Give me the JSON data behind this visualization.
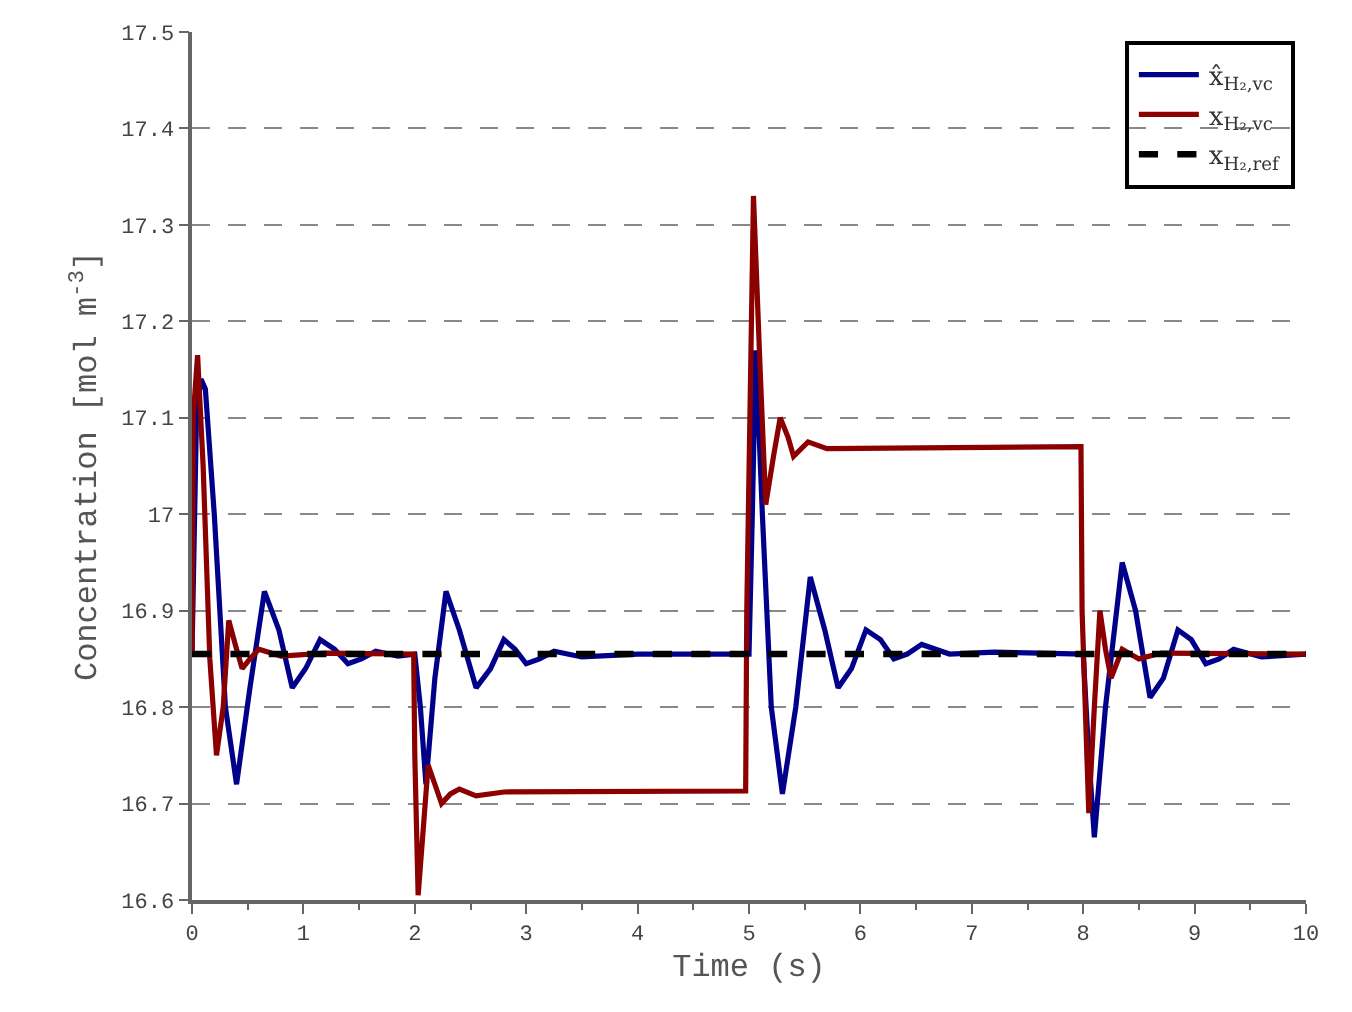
{
  "chart_data": {
    "type": "line",
    "xlabel": "Time (s)",
    "ylabel": "Concentration [mol m$^{-3}$]",
    "xlim": [
      0,
      10
    ],
    "xticks": [
      0,
      1,
      2,
      3,
      4,
      5,
      6,
      7,
      8,
      9,
      10
    ],
    "ylim": [
      16.6,
      17.5
    ],
    "yticks": [
      16.6,
      16.7,
      16.8,
      16.9,
      {
        "value": 17,
        "label": "17"
      },
      17.1,
      17.2,
      17.3,
      17.4,
      17.5
    ],
    "grid": "y",
    "legend": "top right",
    "marker": "none",
    "series": [
      {
        "name": "x̂$_{H₂,vc}$",
        "color": "#00008b",
        "line_style": "solid",
        "x": [
          0,
          0.04,
          0.08,
          0.12,
          0.2,
          0.3,
          0.4,
          0.52,
          0.65,
          0.78,
          0.9,
          1.02,
          1.15,
          1.28,
          1.4,
          1.52,
          1.65,
          1.85,
          2.0,
          2.05,
          2.1,
          2.18,
          2.28,
          2.4,
          2.55,
          2.68,
          2.8,
          2.9,
          3.0,
          3.12,
          3.25,
          3.5,
          4.0,
          5.0,
          5.03,
          5.06,
          5.12,
          5.2,
          5.3,
          5.42,
          5.55,
          5.68,
          5.8,
          5.92,
          6.05,
          6.18,
          6.3,
          6.42,
          6.55,
          6.8,
          7.2,
          8.0,
          8.05,
          8.1,
          8.2,
          8.35,
          8.47,
          8.6,
          8.72,
          8.85,
          8.97,
          9.1,
          9.22,
          9.35,
          9.6,
          10
        ],
        "values": [
          16.855,
          17.1,
          17.14,
          17.13,
          17.0,
          16.8,
          16.72,
          16.82,
          16.92,
          16.88,
          16.82,
          16.84,
          16.87,
          16.86,
          16.845,
          16.85,
          16.858,
          16.853,
          16.855,
          16.8,
          16.72,
          16.83,
          16.92,
          16.88,
          16.82,
          16.84,
          16.87,
          16.86,
          16.845,
          16.85,
          16.858,
          16.852,
          16.855,
          16.855,
          17.0,
          17.17,
          17.0,
          16.8,
          16.71,
          16.8,
          16.935,
          16.88,
          16.82,
          16.84,
          16.88,
          16.87,
          16.85,
          16.855,
          16.865,
          16.855,
          16.857,
          16.855,
          16.75,
          16.665,
          16.8,
          16.95,
          16.9,
          16.81,
          16.83,
          16.88,
          16.87,
          16.845,
          16.85,
          16.86,
          16.852,
          16.855
        ]
      },
      {
        "name": "x$_{H₂,vc}$",
        "color": "#8b0000",
        "line_style": "solid",
        "x": [
          0,
          0.01,
          0.05,
          0.1,
          0.16,
          0.22,
          0.28,
          0.33,
          0.4,
          0.45,
          0.52,
          0.6,
          0.8,
          1.2,
          1.99,
          2.0,
          2.03,
          2.08,
          2.12,
          2.18,
          2.24,
          2.32,
          2.4,
          2.55,
          2.8,
          4.97,
          4.98,
          5.04,
          5.1,
          5.15,
          5.22,
          5.28,
          5.35,
          5.4,
          5.53,
          5.7,
          7.98,
          7.99,
          8.05,
          8.1,
          8.15,
          8.2,
          8.25,
          8.35,
          8.5,
          8.7,
          10
        ],
        "values": [
          16.855,
          17.1,
          17.165,
          17.05,
          16.85,
          16.75,
          16.8,
          16.89,
          16.86,
          16.84,
          16.85,
          16.86,
          16.853,
          16.856,
          16.855,
          16.75,
          16.605,
          16.68,
          16.74,
          16.72,
          16.7,
          16.71,
          16.715,
          16.708,
          16.712,
          16.713,
          16.9,
          17.33,
          17.15,
          17.01,
          17.06,
          17.1,
          17.08,
          17.06,
          17.075,
          17.068,
          17.07,
          16.9,
          16.69,
          16.8,
          16.9,
          16.86,
          16.83,
          16.86,
          16.85,
          16.856,
          16.855
        ]
      },
      {
        "name": "x$_{H₂,ref}$",
        "color": "#000000",
        "line_style": "dashed",
        "x": [
          0,
          10
        ],
        "values": [
          16.855,
          16.855
        ]
      }
    ]
  }
}
